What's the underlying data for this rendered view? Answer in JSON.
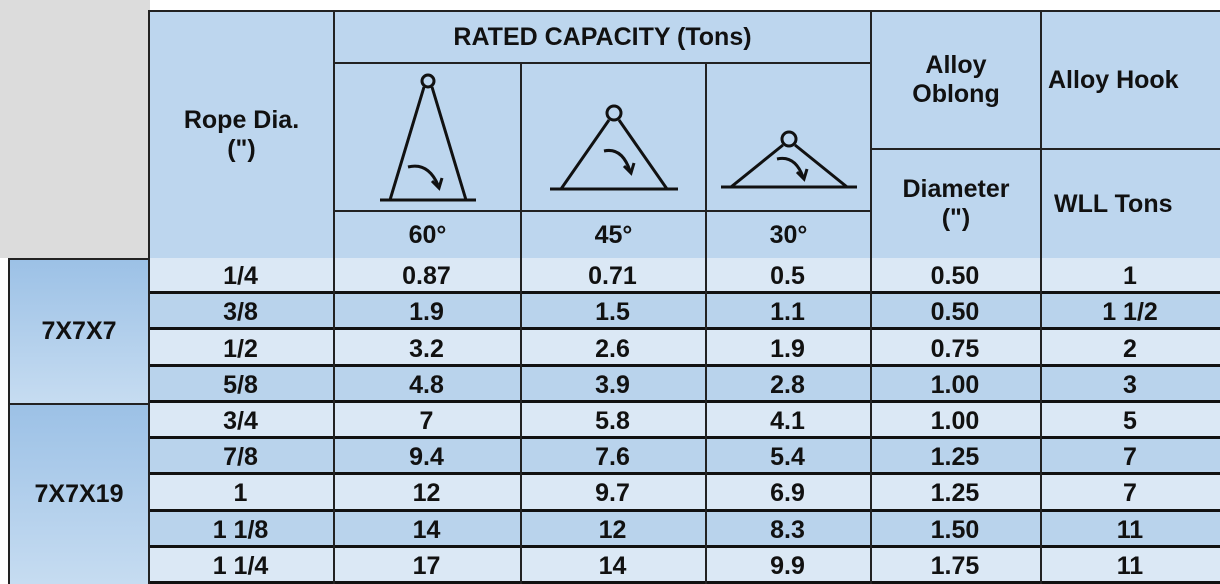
{
  "header": {
    "rated_capacity": "RATED CAPACITY (Tons)",
    "rope_dia": "Rope Dia.\n(\")",
    "angles": [
      "60°",
      "45°",
      "30°"
    ],
    "alloy_oblong": "Alloy\nOblong",
    "diameter": "Diameter\n(\")",
    "alloy_hook": "Alloy Hook",
    "wll_tons": "WLL Tons"
  },
  "groups": [
    {
      "label": "7X7X7",
      "rows": [
        [
          "1/4",
          "0.87",
          "0.71",
          "0.5",
          "0.50",
          "1"
        ],
        [
          "3/8",
          "1.9",
          "1.5",
          "1.1",
          "0.50",
          "1 1/2"
        ],
        [
          "1/2",
          "3.2",
          "2.6",
          "1.9",
          "0.75",
          "2"
        ],
        [
          "5/8",
          "4.8",
          "3.9",
          "2.8",
          "1.00",
          "3"
        ]
      ]
    },
    {
      "label": "7X7X19",
      "rows": [
        [
          "3/4",
          "7",
          "5.8",
          "4.1",
          "1.00",
          "5"
        ],
        [
          "7/8",
          "9.4",
          "7.6",
          "5.4",
          "1.25",
          "7"
        ],
        [
          "1",
          "12",
          "9.7",
          "6.9",
          "1.25",
          "7"
        ],
        [
          "1 1/8",
          "14",
          "12",
          "8.3",
          "1.50",
          "11"
        ],
        [
          "1 1/4",
          "17",
          "14",
          "9.9",
          "1.75",
          "11"
        ]
      ]
    }
  ]
}
